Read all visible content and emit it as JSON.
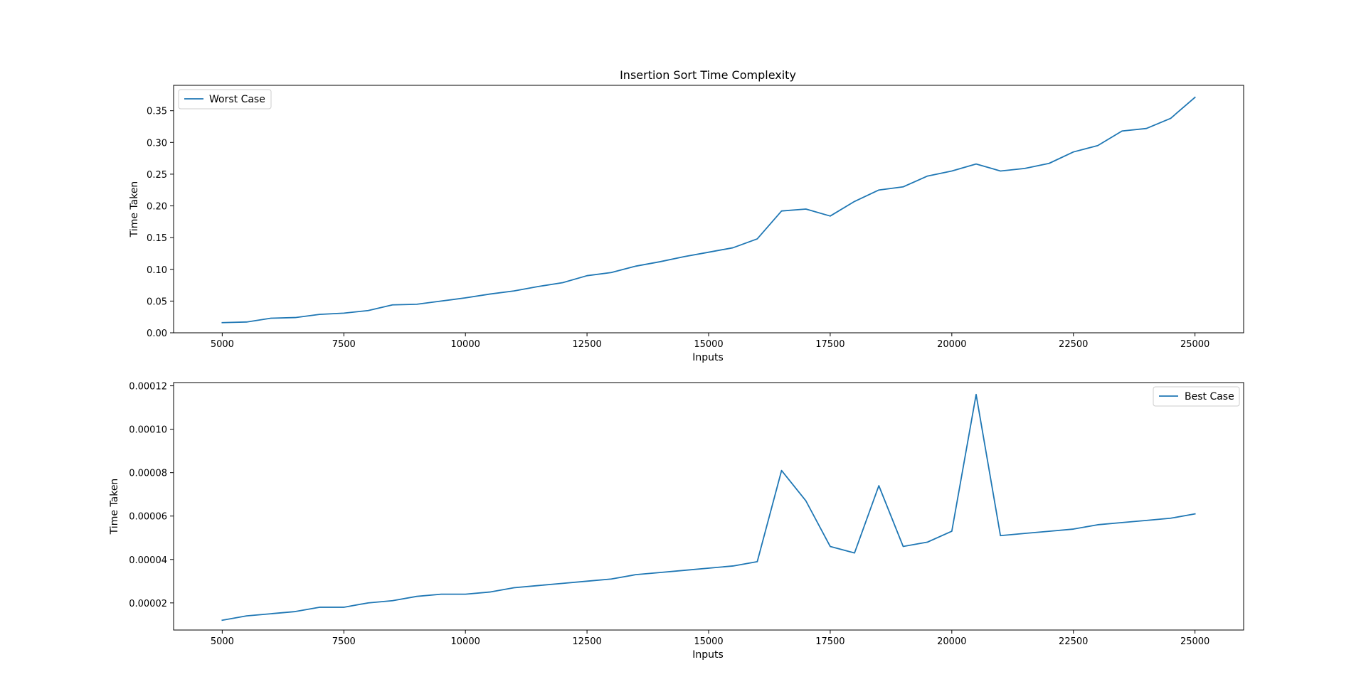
{
  "chart_data": [
    {
      "type": "line",
      "title": "Insertion Sort Time Complexity",
      "xlabel": "Inputs",
      "ylabel": "Time Taken",
      "xlim": [
        4000,
        26000
      ],
      "ylim": [
        0,
        0.39
      ],
      "xticks": [
        5000,
        7500,
        10000,
        12500,
        15000,
        17500,
        20000,
        22500,
        25000
      ],
      "xtick_labels": [
        "5000",
        "7500",
        "10000",
        "12500",
        "15000",
        "17500",
        "20000",
        "22500",
        "25000"
      ],
      "yticks": [
        0,
        0.05,
        0.1,
        0.15,
        0.2,
        0.25,
        0.3,
        0.35
      ],
      "ytick_labels": [
        "0.00",
        "0.05",
        "0.10",
        "0.15",
        "0.20",
        "0.25",
        "0.30",
        "0.35"
      ],
      "legend_position": "upper-left",
      "grid": false,
      "series": [
        {
          "name": "Worst Case",
          "color": "#1f77b4",
          "x": [
            5000,
            5500,
            6000,
            6500,
            7000,
            7500,
            8000,
            8500,
            9000,
            9500,
            10000,
            10500,
            11000,
            11500,
            12000,
            12500,
            13000,
            13500,
            14000,
            14500,
            15000,
            15500,
            16000,
            16500,
            17000,
            17500,
            18000,
            18500,
            19000,
            19500,
            20000,
            20500,
            21000,
            21500,
            22000,
            22500,
            23000,
            23500,
            24000,
            24500,
            25000
          ],
          "y": [
            0.016,
            0.017,
            0.023,
            0.024,
            0.029,
            0.031,
            0.035,
            0.044,
            0.045,
            0.05,
            0.055,
            0.061,
            0.066,
            0.073,
            0.079,
            0.09,
            0.095,
            0.105,
            0.112,
            0.12,
            0.127,
            0.134,
            0.148,
            0.192,
            0.195,
            0.184,
            0.207,
            0.225,
            0.23,
            0.247,
            0.255,
            0.266,
            0.255,
            0.259,
            0.267,
            0.285,
            0.295,
            0.318,
            0.322,
            0.338,
            0.371
          ]
        }
      ]
    },
    {
      "type": "line",
      "title": "",
      "xlabel": "Inputs",
      "ylabel": "Time Taken",
      "xlim": [
        4000,
        26000
      ],
      "ylim": [
        7.5e-06,
        0.0001215
      ],
      "xticks": [
        5000,
        7500,
        10000,
        12500,
        15000,
        17500,
        20000,
        22500,
        25000
      ],
      "xtick_labels": [
        "5000",
        "7500",
        "10000",
        "12500",
        "15000",
        "17500",
        "20000",
        "22500",
        "25000"
      ],
      "yticks": [
        2e-05,
        4e-05,
        6e-05,
        8e-05,
        0.0001,
        0.00012
      ],
      "ytick_labels": [
        "0.00002",
        "0.00004",
        "0.00006",
        "0.00008",
        "0.00010",
        "0.00012"
      ],
      "legend_position": "upper-right",
      "grid": false,
      "series": [
        {
          "name": "Best Case",
          "color": "#1f77b4",
          "x": [
            5000,
            5500,
            6000,
            6500,
            7000,
            7500,
            8000,
            8500,
            9000,
            9500,
            10000,
            10500,
            11000,
            11500,
            12000,
            12500,
            13000,
            13500,
            14000,
            14500,
            15000,
            15500,
            16000,
            16500,
            17000,
            17500,
            18000,
            18500,
            19000,
            19500,
            20000,
            20500,
            21000,
            21500,
            22000,
            22500,
            23000,
            23500,
            24000,
            24500,
            25000
          ],
          "y": [
            1.2e-05,
            1.4e-05,
            1.5e-05,
            1.6e-05,
            1.8e-05,
            1.8e-05,
            2e-05,
            2.1e-05,
            2.3e-05,
            2.4e-05,
            2.4e-05,
            2.5e-05,
            2.7e-05,
            2.8e-05,
            2.9e-05,
            3e-05,
            3.1e-05,
            3.3e-05,
            3.4e-05,
            3.5e-05,
            3.6e-05,
            3.7e-05,
            3.9e-05,
            8.1e-05,
            6.7e-05,
            4.6e-05,
            4.3e-05,
            7.4e-05,
            4.6e-05,
            4.8e-05,
            5.3e-05,
            0.000116,
            5.1e-05,
            5.2e-05,
            5.3e-05,
            5.4e-05,
            5.6e-05,
            5.7e-05,
            5.8e-05,
            5.9e-05,
            6.1e-05
          ]
        }
      ]
    }
  ]
}
